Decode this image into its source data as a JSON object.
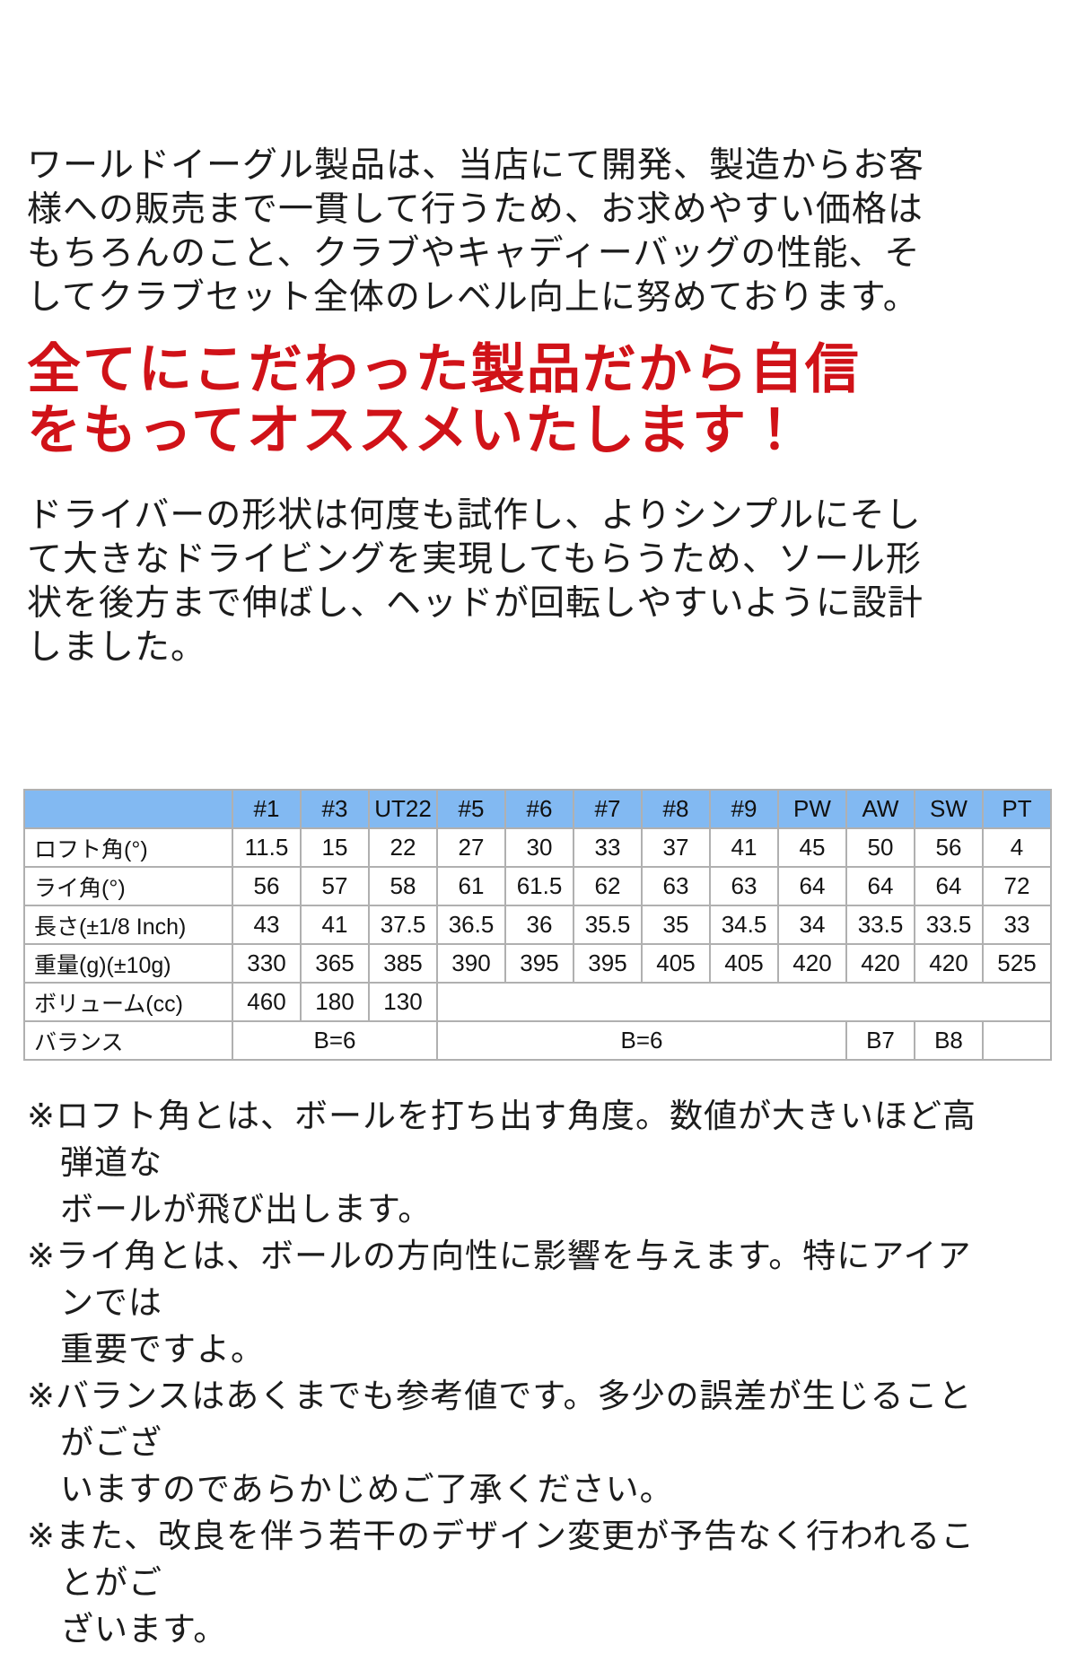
{
  "intro": {
    "text": "ワールドイーグル製品は、当店にて開発、製造からお客\n様への販売まで一貫して行うため、お求めやすい価格は\nもちろんのこと、クラブやキャディーバッグの性能、そ\nしてクラブセット全体のレベル向上に努めております。"
  },
  "headline": {
    "text": "全てにこだわった製品だから自信\nをもってオススメいたします！",
    "color": "#d01218"
  },
  "driver_note": {
    "text": "ドライバーの形状は何度も試作し、よりシンプルにそし\nて大きなドライビングを実現してもらうため、ソール形\n状を後方まで伸ばし、ヘッドが回転しやすいように設計\nしました。"
  },
  "spec_table": {
    "header_bg": "#82b9f2",
    "columns": [
      "",
      "#1",
      "#3",
      "UT22",
      "#5",
      "#6",
      "#7",
      "#8",
      "#9",
      "PW",
      "AW",
      "SW",
      "PT"
    ],
    "rows": [
      {
        "label": "ロフト角(°)",
        "cells": [
          {
            "t": "11.5"
          },
          {
            "t": "15"
          },
          {
            "t": "22"
          },
          {
            "t": "27"
          },
          {
            "t": "30"
          },
          {
            "t": "33"
          },
          {
            "t": "37"
          },
          {
            "t": "41"
          },
          {
            "t": "45"
          },
          {
            "t": "50"
          },
          {
            "t": "56"
          },
          {
            "t": "4"
          }
        ]
      },
      {
        "label": "ライ角(°)",
        "cells": [
          {
            "t": "56"
          },
          {
            "t": "57"
          },
          {
            "t": "58"
          },
          {
            "t": "61"
          },
          {
            "t": "61.5"
          },
          {
            "t": "62"
          },
          {
            "t": "63"
          },
          {
            "t": "63"
          },
          {
            "t": "64"
          },
          {
            "t": "64"
          },
          {
            "t": "64"
          },
          {
            "t": "72"
          }
        ]
      },
      {
        "label": "長さ(±1/8 Inch)",
        "cells": [
          {
            "t": "43"
          },
          {
            "t": "41"
          },
          {
            "t": "37.5"
          },
          {
            "t": "36.5"
          },
          {
            "t": "36"
          },
          {
            "t": "35.5"
          },
          {
            "t": "35"
          },
          {
            "t": "34.5"
          },
          {
            "t": "34"
          },
          {
            "t": "33.5"
          },
          {
            "t": "33.5"
          },
          {
            "t": "33"
          }
        ]
      },
      {
        "label": "重量(g)(±10g)",
        "cells": [
          {
            "t": "330"
          },
          {
            "t": "365"
          },
          {
            "t": "385"
          },
          {
            "t": "390"
          },
          {
            "t": "395"
          },
          {
            "t": "395"
          },
          {
            "t": "405"
          },
          {
            "t": "405"
          },
          {
            "t": "420"
          },
          {
            "t": "420"
          },
          {
            "t": "420"
          },
          {
            "t": "525"
          }
        ]
      },
      {
        "label": "ボリューム(cc)",
        "cells": [
          {
            "t": "460"
          },
          {
            "t": "180"
          },
          {
            "t": "130"
          },
          {
            "t": "",
            "s": 9
          }
        ]
      },
      {
        "label": "バランス",
        "cells": [
          {
            "t": "B=6",
            "s": 3
          },
          {
            "t": "B=6",
            "s": 6
          },
          {
            "t": "B7"
          },
          {
            "t": "B8"
          },
          {
            "t": ""
          }
        ]
      }
    ]
  },
  "footnotes": [
    "※ロフト角とは、ボールを打ち出す角度。数値が大きいほど高弾道な\nボールが飛び出します。",
    "※ライ角とは、ボールの方向性に影響を与えます。特にアイアンでは\n重要ですよ。",
    "※バランスはあくまでも参考値です。多少の誤差が生じることがござ\nいますのであらかじめご了承ください。",
    "※また、改良を伴う若干のデザイン変更が予告なく行われることがご\nざいます。"
  ]
}
